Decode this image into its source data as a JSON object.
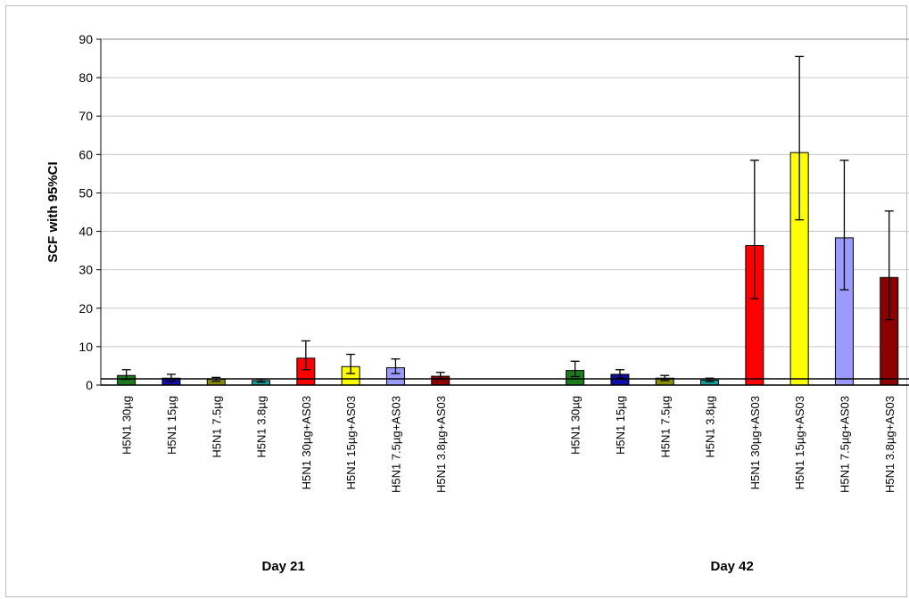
{
  "chart_data": {
    "type": "bar",
    "title": "",
    "ylabel": "SCF with 95%CI",
    "xlabel": "",
    "ylim": [
      0,
      90
    ],
    "yticks": [
      0,
      10,
      20,
      30,
      40,
      50,
      60,
      70,
      80,
      90
    ],
    "grid": true,
    "legend": "none",
    "groups": [
      {
        "name": "Day 21",
        "bars": [
          {
            "label": "H5N1 30µg",
            "value": 2.5,
            "ci_low": 1.5,
            "ci_high": 4.0,
            "color": "#1e7a1e"
          },
          {
            "label": "H5N1 15µg",
            "value": 1.8,
            "ci_low": 1.0,
            "ci_high": 2.8,
            "color": "#1010a0"
          },
          {
            "label": "H5N1 7.5µg",
            "value": 1.5,
            "ci_low": 1.0,
            "ci_high": 2.0,
            "color": "#8a8a10"
          },
          {
            "label": "H5N1 3.8µg",
            "value": 1.2,
            "ci_low": 0.8,
            "ci_high": 1.6,
            "color": "#1a9a9a"
          },
          {
            "label": "H5N1 30µg+AS03",
            "value": 7.0,
            "ci_low": 4.0,
            "ci_high": 11.5,
            "color": "#ff0000"
          },
          {
            "label": "H5N1 15µg+AS03",
            "value": 4.8,
            "ci_low": 3.0,
            "ci_high": 8.0,
            "color": "#ffff00"
          },
          {
            "label": "H5N1 7.5µg+AS03",
            "value": 4.5,
            "ci_low": 3.0,
            "ci_high": 6.8,
            "color": "#9b9bff"
          },
          {
            "label": "H5N1 3.8µg+AS03",
            "value": 2.3,
            "ci_low": 1.5,
            "ci_high": 3.3,
            "color": "#8b0000"
          }
        ]
      },
      {
        "name": "Day 42",
        "bars": [
          {
            "label": "H5N1 30µg",
            "value": 3.8,
            "ci_low": 2.2,
            "ci_high": 6.2,
            "color": "#1e7a1e"
          },
          {
            "label": "H5N1 15µg",
            "value": 2.8,
            "ci_low": 1.8,
            "ci_high": 4.0,
            "color": "#1010a0"
          },
          {
            "label": "H5N1 7.5µg",
            "value": 1.8,
            "ci_low": 1.2,
            "ci_high": 2.5,
            "color": "#8a8a10"
          },
          {
            "label": "H5N1 3.8µg",
            "value": 1.3,
            "ci_low": 0.9,
            "ci_high": 1.8,
            "color": "#1a9a9a"
          },
          {
            "label": "H5N1 30µg+AS03",
            "value": 36.3,
            "ci_low": 22.5,
            "ci_high": 58.5,
            "color": "#ff0000"
          },
          {
            "label": "H5N1 15µg+AS03",
            "value": 60.5,
            "ci_low": 43.0,
            "ci_high": 85.5,
            "color": "#ffff00"
          },
          {
            "label": "H5N1 7.5µg+AS03",
            "value": 38.3,
            "ci_low": 24.8,
            "ci_high": 58.5,
            "color": "#9b9bff"
          },
          {
            "label": "H5N1 3.8µg+AS03",
            "value": 28.0,
            "ci_low": 17.0,
            "ci_high": 45.3,
            "color": "#8b0000"
          }
        ]
      }
    ]
  }
}
